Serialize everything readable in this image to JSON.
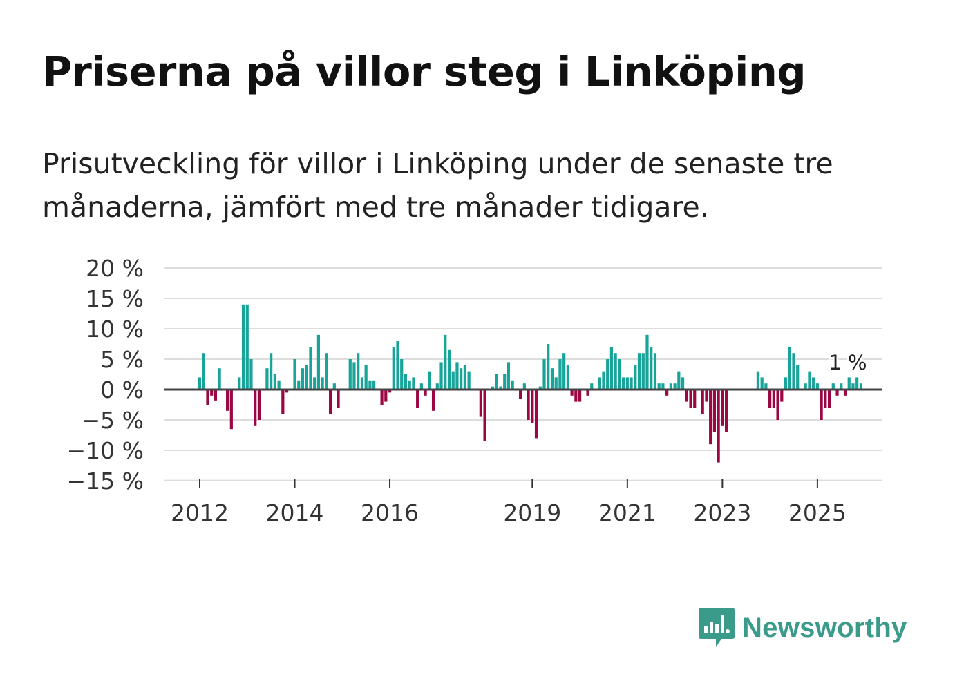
{
  "title": "Priserna på villor steg i Linköping",
  "subtitle": "Prisutveckling för villor i Linköping under de senaste tre månaderna, jämfört med tre månader tidigare.",
  "brand": {
    "name": "Newsworthy",
    "icon": "newsworthy-logo-icon",
    "color": "#3b9b8b"
  },
  "colors": {
    "positive": "#19a49a",
    "negative": "#9b0743",
    "grid": "#dddddd",
    "zero_line": "#444444"
  },
  "chart_data": {
    "type": "bar",
    "title": "Priserna på villor steg i Linköping",
    "xlabel": "",
    "ylabel": "",
    "ylim": [
      -15,
      20
    ],
    "yticks": [
      20,
      15,
      10,
      5,
      0,
      -5,
      -10,
      -15
    ],
    "ytick_labels": [
      "20 %",
      "15 %",
      "10 %",
      "5 %",
      "0 %",
      "−5 %",
      "−10 %",
      "−15 %"
    ],
    "xticks": [
      {
        "label": "2012",
        "index": 0
      },
      {
        "label": "2014",
        "index": 24
      },
      {
        "label": "2016",
        "index": 48
      },
      {
        "label": "2019",
        "index": 84
      },
      {
        "label": "2021",
        "index": 108
      },
      {
        "label": "2023",
        "index": 132
      },
      {
        "label": "2025",
        "index": 156
      }
    ],
    "end_label": "1 %",
    "series": [
      {
        "name": "Prisutveckling",
        "start": "2012-01",
        "values": [
          2,
          6,
          -2.5,
          -1,
          -1.8,
          3.5,
          0,
          -3.5,
          -6.5,
          0,
          2,
          14,
          14,
          5,
          -6,
          -5,
          0,
          3.5,
          6,
          2.5,
          1.5,
          -4,
          -0.5,
          0,
          5,
          1.5,
          3.5,
          4,
          7,
          2,
          9,
          2,
          6,
          -4,
          1,
          -3,
          0,
          0,
          5,
          4.5,
          6,
          2,
          4,
          1.5,
          1.5,
          0,
          -2.5,
          -2,
          -0.5,
          7,
          8,
          5,
          2.5,
          1.5,
          2,
          -3,
          1,
          -1,
          3,
          -3.5,
          1,
          4.5,
          9,
          6.5,
          3,
          4.5,
          3.5,
          4,
          3,
          0,
          0,
          -4.5,
          -8.5,
          0,
          0.5,
          2.5,
          0.5,
          2.5,
          4.5,
          1.5,
          0,
          -1.5,
          1,
          -5,
          -5.5,
          -8,
          0.5,
          5,
          7.5,
          3.5,
          2,
          5,
          6,
          4,
          -1,
          -2,
          -2,
          0,
          -1,
          1,
          0,
          2,
          3,
          5,
          7,
          6,
          5,
          2,
          2,
          2,
          4,
          6,
          6,
          9,
          7,
          6,
          1,
          1,
          -1,
          1,
          1,
          3,
          2,
          -2,
          -3,
          -3,
          0,
          -4,
          -2,
          -9,
          -7,
          -12,
          -6,
          -7,
          0,
          0,
          0,
          0,
          0,
          0,
          0,
          3,
          2,
          1,
          -3,
          -3,
          -5,
          -2,
          2,
          7,
          6,
          4,
          0,
          1,
          3,
          2,
          1,
          -5,
          -3,
          -3,
          1,
          -1,
          1,
          -1,
          2,
          1,
          2,
          1
        ]
      }
    ]
  }
}
